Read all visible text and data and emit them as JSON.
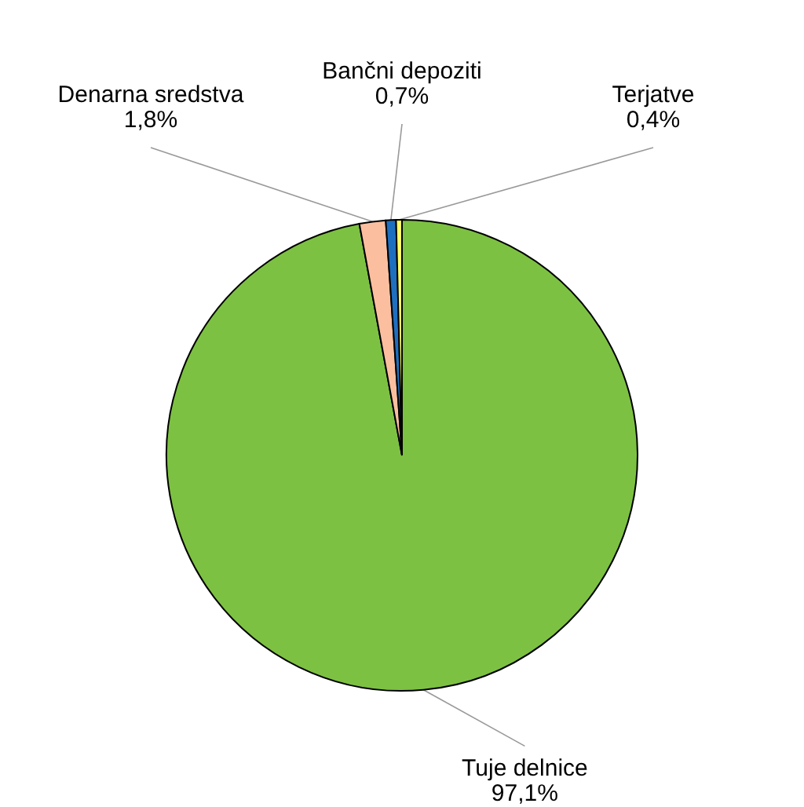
{
  "chart_data": {
    "type": "pie",
    "categories": [
      "Tuje delnice",
      "Denarna sredstva",
      "Bančni depoziti",
      "Terjatve"
    ],
    "values": [
      97.1,
      1.8,
      0.7,
      0.4
    ],
    "colors": [
      "#7dc142",
      "#fbbf9f",
      "#1f6fbf",
      "#ffff66"
    ],
    "value_labels": [
      "97,1%",
      "1,8%",
      "0,7%",
      "0,4%"
    ]
  }
}
